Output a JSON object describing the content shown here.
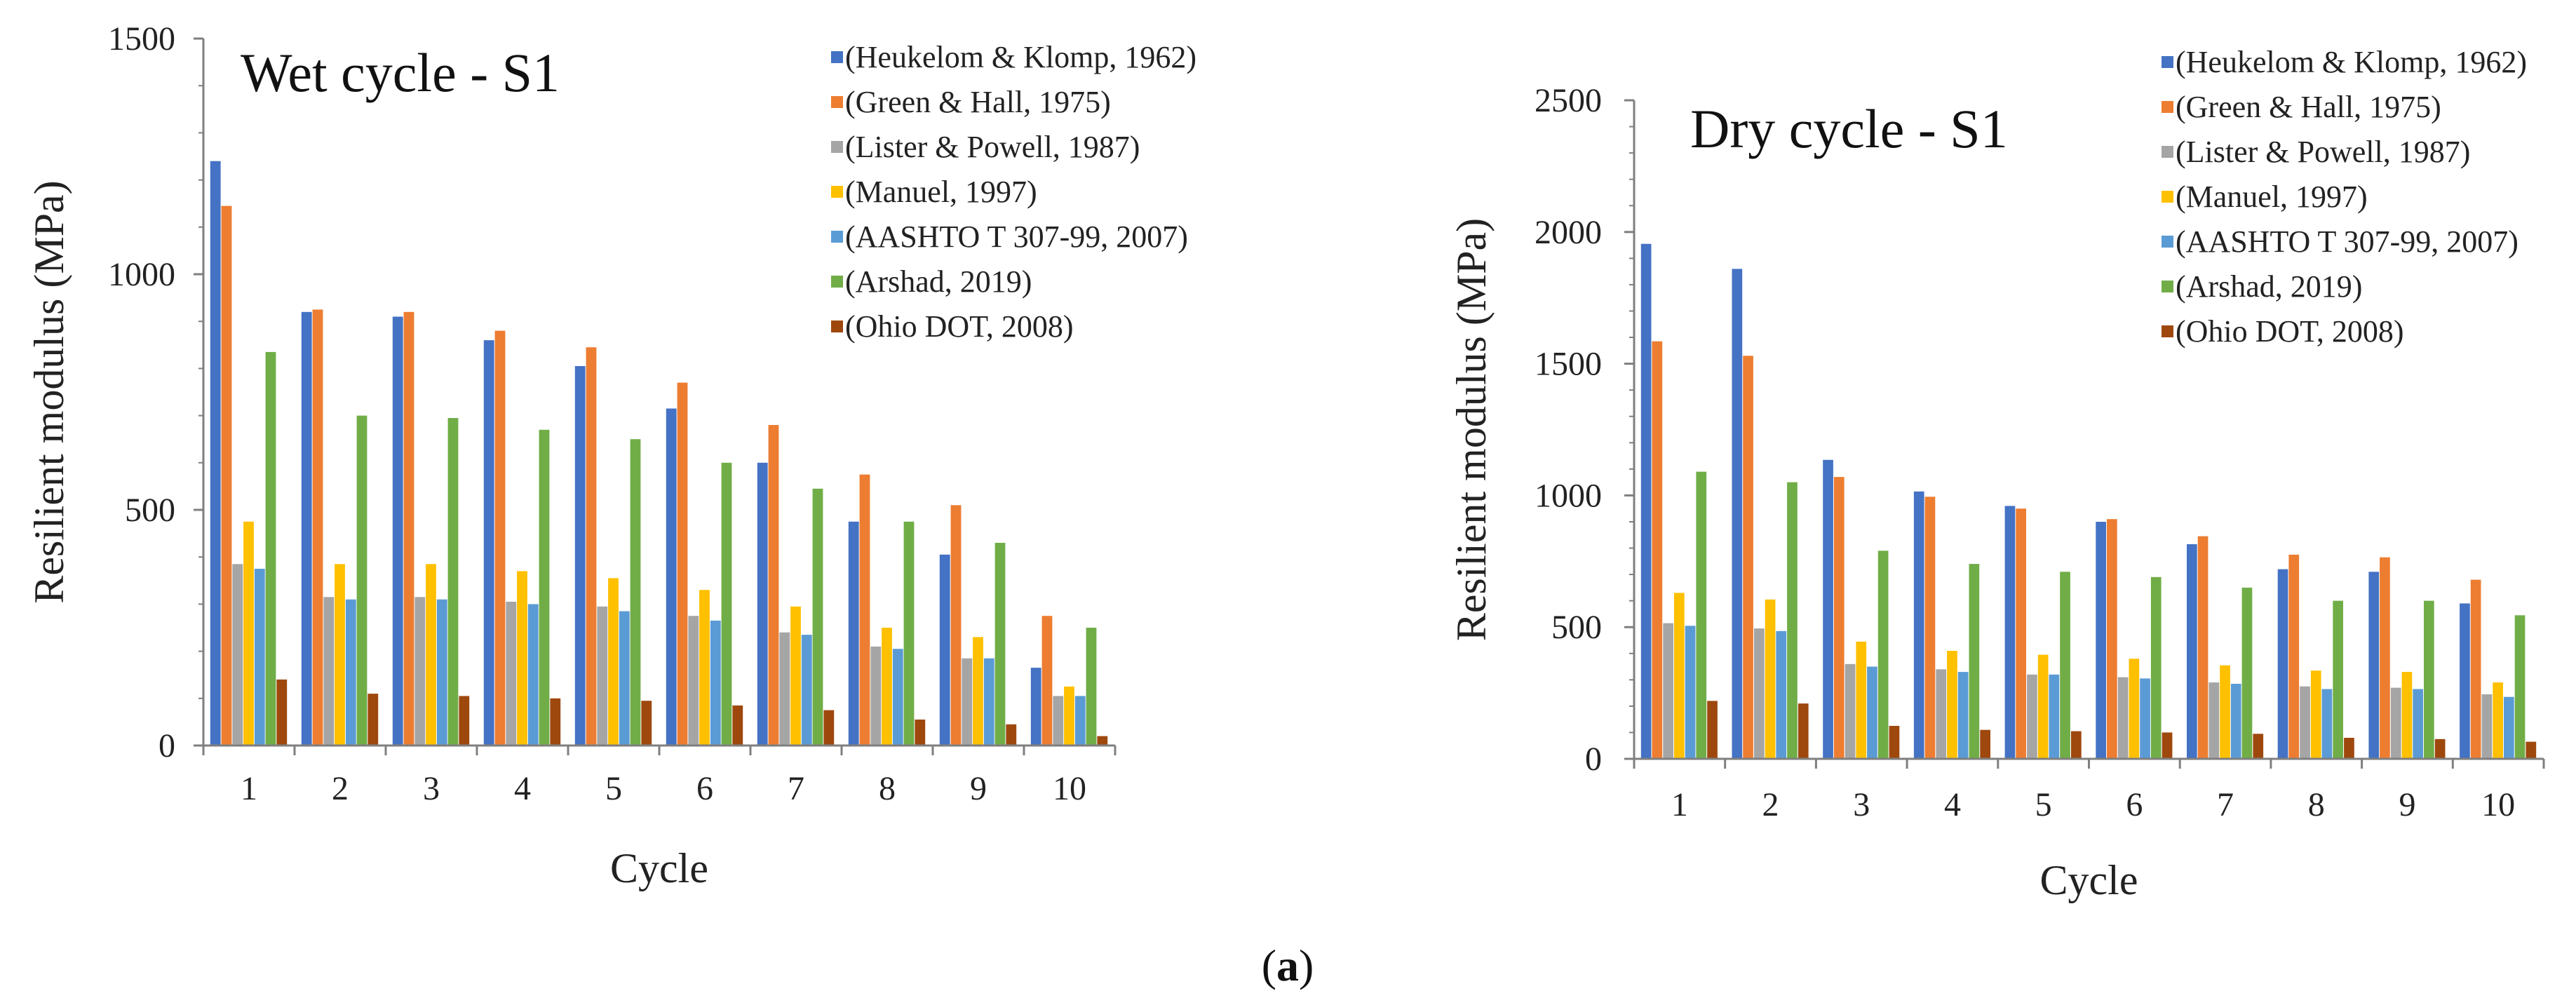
{
  "figure_caption": {
    "open": "(",
    "letter": "a",
    "close": ")"
  },
  "series_colors": [
    "#4472C4",
    "#ED7D31",
    "#A5A5A5",
    "#FFC000",
    "#5B9BD5",
    "#70AD47",
    "#9E480E"
  ],
  "chart_data": [
    {
      "type": "bar",
      "title": "Wet cycle - S1",
      "xlabel": "Cycle",
      "ylabel": "Resilient modulus (MPa)",
      "ylim": [
        0,
        1500
      ],
      "yticks": [
        "0",
        "500",
        "1000",
        "1500"
      ],
      "grid": false,
      "legend_position": "top-right",
      "categories": [
        "1",
        "2",
        "3",
        "4",
        "5",
        "6",
        "7",
        "8",
        "9",
        "10"
      ],
      "series": [
        {
          "name": "(Heukelom & Klomp, 1962)",
          "values": [
            1240,
            920,
            910,
            860,
            805,
            715,
            600,
            475,
            405,
            165
          ]
        },
        {
          "name": "(Green & Hall, 1975)",
          "values": [
            1145,
            925,
            920,
            880,
            845,
            770,
            680,
            575,
            510,
            275
          ]
        },
        {
          "name": "(Lister & Powell, 1987)",
          "values": [
            385,
            315,
            315,
            305,
            295,
            275,
            240,
            210,
            185,
            105
          ]
        },
        {
          "name": "(Manuel, 1997)",
          "values": [
            475,
            385,
            385,
            370,
            355,
            330,
            295,
            250,
            230,
            125
          ]
        },
        {
          "name": "(AASHTO T 307-99, 2007)",
          "values": [
            375,
            310,
            310,
            300,
            285,
            265,
            235,
            205,
            185,
            105
          ]
        },
        {
          "name": "(Arshad, 2019)",
          "values": [
            835,
            700,
            695,
            670,
            650,
            600,
            545,
            475,
            430,
            250
          ]
        },
        {
          "name": "(Ohio DOT, 2008)",
          "values": [
            140,
            110,
            105,
            100,
            95,
            85,
            75,
            55,
            45,
            20
          ]
        }
      ]
    },
    {
      "type": "bar",
      "title": "Dry cycle - S1",
      "xlabel": "Cycle",
      "ylabel": "Resilient modulus (MPa)",
      "ylim": [
        0,
        2500
      ],
      "yticks": [
        "0",
        "500",
        "1000",
        "1500",
        "2000",
        "2500"
      ],
      "grid": false,
      "legend_position": "top-right",
      "categories": [
        "1",
        "2",
        "3",
        "4",
        "5",
        "6",
        "7",
        "8",
        "9",
        "10"
      ],
      "series": [
        {
          "name": "(Heukelom & Klomp, 1962)",
          "values": [
            1955,
            1860,
            1135,
            1015,
            960,
            900,
            815,
            720,
            710,
            590
          ]
        },
        {
          "name": "(Green & Hall, 1975)",
          "values": [
            1585,
            1530,
            1070,
            995,
            950,
            910,
            845,
            775,
            765,
            680
          ]
        },
        {
          "name": "(Lister & Powell, 1987)",
          "values": [
            515,
            495,
            360,
            340,
            320,
            310,
            290,
            275,
            270,
            245
          ]
        },
        {
          "name": "(Manuel, 1997)",
          "values": [
            630,
            605,
            445,
            410,
            395,
            380,
            355,
            335,
            330,
            290
          ]
        },
        {
          "name": "(AASHTO T 307-99, 2007)",
          "values": [
            505,
            485,
            350,
            330,
            320,
            305,
            285,
            265,
            265,
            235
          ]
        },
        {
          "name": "(Arshad, 2019)",
          "values": [
            1090,
            1050,
            790,
            740,
            710,
            690,
            650,
            600,
            600,
            545
          ]
        },
        {
          "name": "(Ohio DOT, 2008)",
          "values": [
            220,
            210,
            125,
            110,
            105,
            100,
            95,
            80,
            75,
            65
          ]
        }
      ]
    }
  ]
}
